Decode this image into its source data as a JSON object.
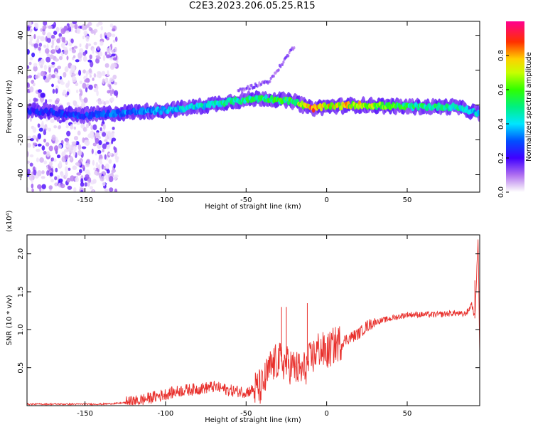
{
  "title": "C2E3.2023.206.05.25.R15",
  "colors": {
    "snr_line": "#e8302c",
    "axis": "#000000"
  },
  "chart_data": [
    {
      "type": "heatmap",
      "xlabel": "Height of straight line (km)",
      "ylabel": "Frequency (Hz)",
      "xlim": [
        -186,
        95
      ],
      "ylim": [
        -50,
        48
      ],
      "xticks": [
        -150,
        -100,
        -50,
        0,
        50
      ],
      "xtick_labels": [
        "-150",
        "-100",
        "-50",
        "0",
        "50"
      ],
      "yticks": [
        -40,
        -20,
        0,
        20,
        40
      ],
      "ytick_labels": [
        "-40",
        "-20",
        "0",
        "20",
        "40"
      ],
      "colorbar": {
        "label": "Normalized spectral amplitude",
        "range": [
          0,
          1
        ],
        "ticks": [
          0.0,
          0.2,
          0.4,
          0.6,
          0.8
        ],
        "tick_labels": [
          "0.0",
          "0.2",
          "0.4",
          "0.6",
          "0.8"
        ],
        "colormap": "rainbow (white-violet-blue-cyan-green-yellow-red-magenta)"
      },
      "features": {
        "noise_region_x": [
          -186,
          -130
        ],
        "main_band": [
          {
            "x": -186,
            "y": -3,
            "amp": 0.25
          },
          {
            "x": -150,
            "y": -6,
            "amp": 0.3
          },
          {
            "x": -120,
            "y": -4,
            "amp": 0.35
          },
          {
            "x": -100,
            "y": -3,
            "amp": 0.4
          },
          {
            "x": -80,
            "y": -1,
            "amp": 0.45
          },
          {
            "x": -60,
            "y": 2,
            "amp": 0.5
          },
          {
            "x": -40,
            "y": 4,
            "amp": 0.55
          },
          {
            "x": -20,
            "y": 2,
            "amp": 0.6
          },
          {
            "x": -10,
            "y": -2,
            "amp": 0.9
          },
          {
            "x": 0,
            "y": -1,
            "amp": 0.8
          },
          {
            "x": 20,
            "y": 0,
            "amp": 0.75
          },
          {
            "x": 50,
            "y": -1,
            "amp": 0.55
          },
          {
            "x": 80,
            "y": -1,
            "amp": 0.5
          },
          {
            "x": 95,
            "y": -5,
            "amp": 0.4
          }
        ],
        "rising_branch": [
          {
            "x": -55,
            "y": 8
          },
          {
            "x": -35,
            "y": 14
          },
          {
            "x": -20,
            "y": 34
          }
        ]
      }
    },
    {
      "type": "line",
      "xlabel": "Height of straight line (km)",
      "ylabel": "SNR (10 * v/v)",
      "y_multiplier": "(x10⁴)",
      "xlim": [
        -186,
        95
      ],
      "ylim": [
        0,
        2.25
      ],
      "xticks": [
        -150,
        -100,
        -50,
        0,
        50
      ],
      "xtick_labels": [
        "-150",
        "-100",
        "-50",
        "0",
        "50"
      ],
      "yticks": [
        0.5,
        1.0,
        1.5,
        2.0
      ],
      "ytick_labels": [
        "0.5",
        "1.0",
        "1.5",
        "2.0"
      ],
      "series": [
        {
          "x": [
            -186,
            -160,
            -140,
            -130,
            -120,
            -110,
            -100,
            -90,
            -80,
            -70,
            -60,
            -50,
            -40,
            -35,
            -30,
            -25,
            -20,
            -15,
            -10,
            -5,
            0,
            5,
            10,
            15,
            20,
            25,
            30,
            40,
            50,
            60,
            70,
            80,
            85,
            88,
            90,
            92,
            94,
            95
          ],
          "y": [
            0.02,
            0.02,
            0.02,
            0.03,
            0.05,
            0.1,
            0.15,
            0.2,
            0.22,
            0.25,
            0.2,
            0.18,
            0.25,
            0.5,
            0.6,
            0.55,
            0.5,
            0.45,
            0.6,
            0.75,
            0.7,
            0.8,
            0.85,
            0.9,
            0.95,
            1.05,
            1.1,
            1.15,
            1.2,
            1.2,
            1.2,
            1.22,
            1.2,
            1.25,
            1.35,
            1.15,
            2.2,
            0.7
          ]
        }
      ],
      "spikes": [
        {
          "x": -28,
          "y": 1.3
        },
        {
          "x": -25,
          "y": 1.3
        },
        {
          "x": -12,
          "y": 1.35
        },
        {
          "x": 92,
          "y": 1.65
        },
        {
          "x": 94,
          "y": 2.2
        }
      ]
    }
  ]
}
